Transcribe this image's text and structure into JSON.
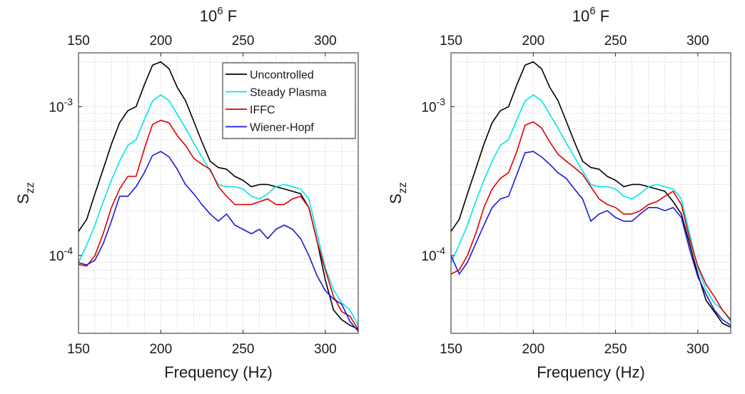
{
  "chart_data": [
    {
      "type": "line",
      "title": "",
      "xlabel": "Frequency (Hz)",
      "ylabel_main": "S",
      "ylabel_sub": "zz",
      "top_label_base": "10",
      "top_label_exp": "6",
      "top_label_unit": " F",
      "xlim": [
        150,
        320
      ],
      "ylim": [
        3e-05,
        0.0023
      ],
      "yscale": "log",
      "grid": true,
      "x_ticks": [
        150,
        200,
        250,
        300
      ],
      "x_tick_labels": [
        "150",
        "200",
        "250",
        "300"
      ],
      "top_ticks": [
        150,
        200,
        250,
        300
      ],
      "top_tick_labels": [
        "150",
        "200",
        "250",
        "300"
      ],
      "y_ticks": [
        0.0001,
        0.001
      ],
      "y_tick_labels": [
        {
          "base": "10",
          "exp": "-4"
        },
        {
          "base": "10",
          "exp": "-3"
        }
      ],
      "legend": "top-right",
      "x": [
        150,
        155,
        160,
        165,
        170,
        175,
        180,
        185,
        190,
        195,
        200,
        205,
        210,
        215,
        220,
        225,
        230,
        235,
        240,
        245,
        250,
        255,
        260,
        265,
        270,
        275,
        280,
        285,
        290,
        295,
        300,
        305,
        310,
        315,
        320
      ],
      "series": [
        {
          "name": "Uncontrolled",
          "color": "#000000",
          "values": [
            0.000145,
            0.000175,
            0.00026,
            0.00038,
            0.00056,
            0.00078,
            0.00094,
            0.001,
            0.0014,
            0.0019,
            0.002,
            0.0018,
            0.00135,
            0.0011,
            0.0008,
            0.00058,
            0.00043,
            0.00039,
            0.00038,
            0.00034,
            0.00032,
            0.00029,
            0.0003,
            0.0003,
            0.00029,
            0.00028,
            0.00027,
            0.00026,
            0.00021,
            0.000125,
            6.85e-05,
            4.3e-05,
            3.7e-05,
            3.4e-05,
            3.2e-05
          ]
        },
        {
          "name": "Steady Plasma",
          "color": "#00e5e5",
          "values": [
            8.95e-05,
            0.000118,
            0.00016,
            0.00023,
            0.00032,
            0.00043,
            0.00055,
            0.0006,
            0.00082,
            0.00109,
            0.0012,
            0.0011,
            0.00089,
            0.00072,
            0.00057,
            0.00046,
            0.00037,
            0.0003,
            0.00029,
            0.00029,
            0.00028,
            0.00025,
            0.00024,
            0.00026,
            0.00029,
            0.0003,
            0.00029,
            0.00028,
            0.00024,
            0.00014,
            8.25e-05,
            5.9e-05,
            4.8e-05,
            4.3e-05,
            3.4e-05
          ]
        },
        {
          "name": "IFFC",
          "color": "#e00000",
          "values": [
            8.7e-05,
            8.5e-05,
            0.0001,
            0.00014,
            0.00021,
            0.00028,
            0.00034,
            0.00034,
            0.00052,
            0.00076,
            0.00081,
            0.00078,
            0.00064,
            0.00055,
            0.00045,
            0.00041,
            0.00038,
            0.00029,
            0.00025,
            0.00022,
            0.00022,
            0.00022,
            0.00023,
            0.00024,
            0.00022,
            0.00022,
            0.00024,
            0.00025,
            0.00021,
            0.000125,
            8e-05,
            5.3e-05,
            4.2e-05,
            3.9e-05,
            3.2e-05
          ]
        },
        {
          "name": "Wiener-Hopf",
          "color": "#1a1adb",
          "values": [
            8.95e-05,
            8.65e-05,
            9.3e-05,
            0.00012,
            0.00017,
            0.00025,
            0.00025,
            0.00029,
            0.00036,
            0.00047,
            0.0005,
            0.00046,
            0.00038,
            0.0003,
            0.00026,
            0.00022,
            0.00019,
            0.00017,
            0.00019,
            0.00016,
            0.00015,
            0.00014,
            0.00015,
            0.00013,
            0.00015,
            0.00016,
            0.00015,
            0.00013,
            0.0001,
            7.3e-05,
            5.8e-05,
            5.1e-05,
            4.7e-05,
            3.6e-05,
            3.1e-05
          ]
        }
      ]
    },
    {
      "type": "line",
      "title": "",
      "xlabel": "Frequency (Hz)",
      "ylabel_main": "S",
      "ylabel_sub": "zz",
      "top_label_base": "10",
      "top_label_exp": "6",
      "top_label_unit": " F",
      "xlim": [
        150,
        320
      ],
      "ylim": [
        3e-05,
        0.0023
      ],
      "yscale": "log",
      "grid": true,
      "x_ticks": [
        150,
        200,
        250,
        300
      ],
      "x_tick_labels": [
        "150",
        "200",
        "250",
        "300"
      ],
      "top_ticks": [
        150,
        200,
        250,
        300
      ],
      "top_tick_labels": [
        "150",
        "200",
        "250",
        "300"
      ],
      "y_ticks": [
        0.0001,
        0.001
      ],
      "y_tick_labels": [
        {
          "base": "10",
          "exp": "-4"
        },
        {
          "base": "10",
          "exp": "-3"
        }
      ],
      "legend": "none",
      "x": [
        150,
        155,
        160,
        165,
        170,
        175,
        180,
        185,
        190,
        195,
        200,
        205,
        210,
        215,
        220,
        225,
        230,
        235,
        240,
        245,
        250,
        255,
        260,
        265,
        270,
        275,
        280,
        285,
        290,
        295,
        300,
        305,
        310,
        315,
        320
      ],
      "series": [
        {
          "name": "Uncontrolled",
          "color": "#000000",
          "values": [
            0.000145,
            0.000175,
            0.00026,
            0.00038,
            0.00056,
            0.00078,
            0.00094,
            0.001,
            0.0014,
            0.0019,
            0.002,
            0.0018,
            0.00135,
            0.0011,
            0.0008,
            0.00058,
            0.00043,
            0.00039,
            0.00038,
            0.00034,
            0.00032,
            0.00029,
            0.0003,
            0.0003,
            0.00029,
            0.00028,
            0.00027,
            0.00023,
            0.00019,
            0.00012,
            7.5e-05,
            5e-05,
            4.2e-05,
            3.5e-05,
            3.3e-05
          ]
        },
        {
          "name": "Steady Plasma",
          "color": "#00e5e5",
          "values": [
            8.95e-05,
            0.000118,
            0.00016,
            0.00023,
            0.00032,
            0.00043,
            0.00055,
            0.0006,
            0.00082,
            0.00109,
            0.0012,
            0.0011,
            0.00089,
            0.00072,
            0.00057,
            0.00046,
            0.00037,
            0.0003,
            0.00029,
            0.00029,
            0.00028,
            0.00025,
            0.00024,
            0.00026,
            0.00029,
            0.0003,
            0.00029,
            0.00028,
            0.00024,
            0.00014,
            8.25e-05,
            5.9e-05,
            4.8e-05,
            4.3e-05,
            3.6e-05
          ]
        },
        {
          "name": "IFFC",
          "color": "#e00000",
          "values": [
            7.5e-05,
            8e-05,
            0.0001,
            0.00014,
            0.00021,
            0.00028,
            0.00033,
            0.00036,
            0.0005,
            0.00075,
            0.00079,
            0.00072,
            0.00058,
            0.00048,
            0.00043,
            0.00039,
            0.00035,
            0.00029,
            0.00024,
            0.00022,
            0.00021,
            0.00019,
            0.00019,
            0.0002,
            0.00022,
            0.00023,
            0.00025,
            0.00027,
            0.00022,
            0.00013,
            8.5e-05,
            6.4e-05,
            5.3e-05,
            4.3e-05,
            3.7e-05
          ]
        },
        {
          "name": "Wiener-Hopf",
          "color": "#1a1adb",
          "values": [
            0.0001,
            7.5e-05,
            9e-05,
            0.00012,
            0.00016,
            0.00021,
            0.00024,
            0.00025,
            0.00035,
            0.00049,
            0.0005,
            0.00046,
            0.00041,
            0.00036,
            0.00033,
            0.00028,
            0.00024,
            0.00017,
            0.00019,
            0.0002,
            0.00018,
            0.00017,
            0.00017,
            0.00019,
            0.00021,
            0.00021,
            0.0002,
            0.00021,
            0.00018,
            0.00011,
            7.2e-05,
            5.5e-05,
            4.3e-05,
            3.7e-05,
            3.4e-05
          ]
        }
      ]
    }
  ]
}
